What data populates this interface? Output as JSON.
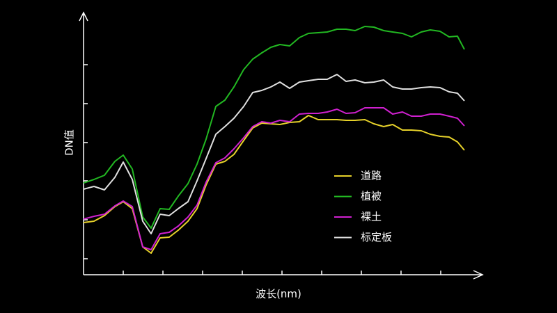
{
  "chart_data": {
    "type": "line",
    "ylabel": "DN值",
    "xlabel": "波长(nm)",
    "xlim": [
      0,
      570
    ],
    "ylim": [
      0,
      375
    ],
    "legend": "right",
    "x": [
      0,
      15,
      30,
      45,
      57,
      70,
      85,
      97,
      110,
      123,
      136,
      150,
      163,
      176,
      190,
      203,
      216,
      230,
      243,
      256,
      269,
      282,
      296,
      310,
      323,
      337,
      350,
      364,
      377,
      390,
      404,
      417,
      431,
      444,
      458,
      471,
      485,
      498,
      512,
      525,
      537,
      547
    ],
    "series": [
      {
        "name": "道路",
        "color": "#e6d12a",
        "values": [
          75,
          77,
          85,
          98,
          105,
          95,
          40,
          31,
          53,
          54,
          64,
          77,
          95,
          129,
          159,
          163,
          173,
          193,
          211,
          218,
          217,
          216,
          219,
          220,
          229,
          223,
          223,
          223,
          222,
          222,
          223,
          217,
          213,
          216,
          208,
          208,
          207,
          202,
          199,
          198,
          191,
          179
        ]
      },
      {
        "name": "植被",
        "color": "#22b822",
        "values": [
          132,
          137,
          143,
          163,
          172,
          152,
          83,
          67,
          95,
          94,
          113,
          131,
          159,
          195,
          242,
          251,
          270,
          295,
          310,
          319,
          327,
          331,
          329,
          341,
          347,
          348,
          349,
          353,
          353,
          351,
          357,
          356,
          351,
          349,
          347,
          342,
          349,
          352,
          350,
          342,
          343,
          324
        ]
      },
      {
        "name": "裸土",
        "color": "#d020d0",
        "values": [
          80,
          84,
          87,
          99,
          106,
          98,
          40,
          36,
          59,
          61,
          70,
          83,
          100,
          133,
          161,
          168,
          181,
          197,
          213,
          220,
          218,
          222,
          220,
          231,
          232,
          232,
          234,
          238,
          232,
          233,
          240,
          240,
          240,
          231,
          234,
          228,
          228,
          231,
          231,
          228,
          225,
          214
        ]
      },
      {
        "name": "标定板",
        "color": "#e0e0e0",
        "values": [
          123,
          127,
          122,
          140,
          162,
          137,
          77,
          59,
          87,
          85,
          95,
          105,
          135,
          167,
          202,
          213,
          225,
          242,
          262,
          265,
          270,
          277,
          268,
          277,
          279,
          281,
          281,
          288,
          278,
          280,
          276,
          277,
          280,
          270,
          267,
          267,
          269,
          270,
          269,
          263,
          261,
          250
        ]
      }
    ]
  }
}
